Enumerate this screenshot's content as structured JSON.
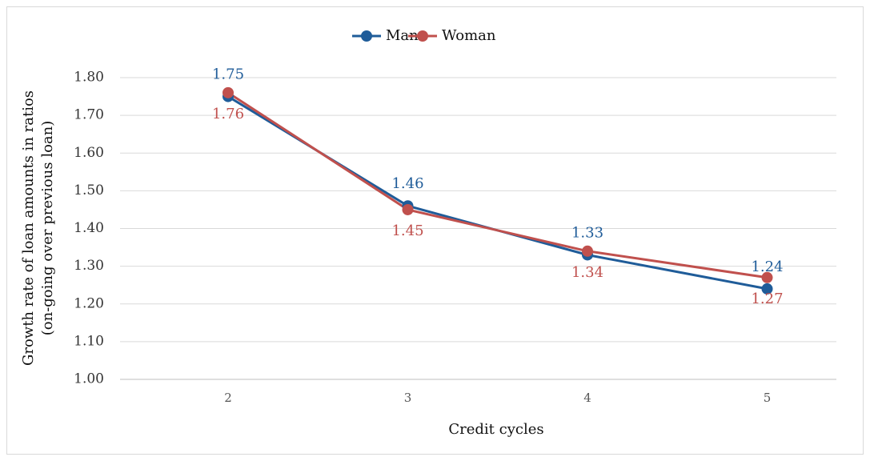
{
  "chart_data": {
    "type": "line",
    "ylabel": [
      "Growth rate of loan amounts in ratios",
      "(on-going over previous loan)"
    ],
    "xlabel": "Credit cycles",
    "categories": [
      "2",
      "3",
      "4",
      "5"
    ],
    "series": [
      {
        "name": "Man",
        "color": "#1f5c99",
        "values": [
          1.75,
          1.46,
          1.33,
          1.24
        ]
      },
      {
        "name": "Woman",
        "color": "#c0504d",
        "values": [
          1.76,
          1.45,
          1.34,
          1.27
        ]
      }
    ],
    "ylim": [
      1.0,
      1.8
    ],
    "yticks": [
      {
        "value": 1.0,
        "label": "1.00"
      },
      {
        "value": 1.1,
        "label": "1.10"
      },
      {
        "value": 1.2,
        "label": "1.20"
      },
      {
        "value": 1.3,
        "label": "1.30"
      },
      {
        "value": 1.4,
        "label": "1.40"
      },
      {
        "value": 1.5,
        "label": "1.50"
      },
      {
        "value": 1.6,
        "label": "1.60"
      },
      {
        "value": 1.7,
        "label": "1.70"
      },
      {
        "value": 1.8,
        "label": "1.80"
      }
    ],
    "grid": true,
    "legend": "top"
  }
}
